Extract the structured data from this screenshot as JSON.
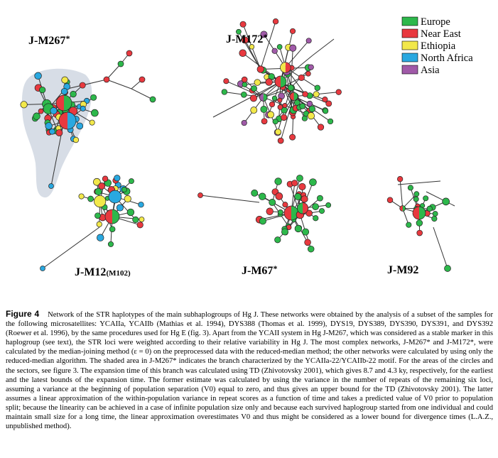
{
  "figure": {
    "networks": [
      {
        "id": "m267",
        "label": "J-M267",
        "suffix": "*"
      },
      {
        "id": "m172",
        "label": "J-M172",
        "suffix": "*"
      },
      {
        "id": "m12",
        "label": "J-M12",
        "suffix": "(M102)"
      },
      {
        "id": "m67",
        "label": "J-M67",
        "suffix": "*"
      },
      {
        "id": "m92",
        "label": "J-M92",
        "suffix": ""
      }
    ],
    "legend": [
      {
        "label": "Europe",
        "color": "#2db84b"
      },
      {
        "label": "Near East",
        "color": "#e8393f"
      },
      {
        "label": "Ethiopia",
        "color": "#f2e84a"
      },
      {
        "label": "North Africa",
        "color": "#29a8e0"
      },
      {
        "label": "Asia",
        "color": "#a05aa8"
      }
    ]
  },
  "caption": {
    "label": "Figure 4",
    "text": "Network of the STR haplotypes of the main subhaplogroups of Hg J. These networks were obtained by the analysis of a subset of the samples for the following microsatellites: YCAIIa, YCAIIb (Mathias et al. 1994), DYS388 (Thomas et al. 1999), DYS19, DYS389, DYS390, DYS391, and DYS392 (Roewer et al. 1996), by the same procedures used for Hg E (fig. 3). Apart from the YCAII system in Hg J-M267, which was considered as a stable marker in this haplogroup (see text), the STR loci were weighted according to their relative variability in Hg J. The most complex networks, J-M267* and J-M172*, were calculated by the median-joining method (ε = 0) on the preprocessed data with the reduced-median method; the other networks were calculated by using only the reduced-median algorithm. The shaded area in J-M267* indicates the branch characterized by the YCAIIa-22/YCAIIb-22 motif. For the areas of the circles and the sectors, see figure 3. The expansion time of this branch was calculated using TD (Zhivotovsky 2001), which gives 8.7 and 4.3 ky, respectively, for the earliest and the latest bounds of the expansion time. The former estimate was calculated by using the variance in the number of repeats of the remaining six loci, assuming a variance at the beginning of population separation (V0) equal to zero, and thus gives an upper bound for the TD (Zhivotovsky 2001). The latter assumes a linear approximation of the within-population variance in repeat scores as a function of time and takes a predicted value of V0 prior to population split; because the linearity can be achieved in a case of infinite population size only and because each survived haplogroup started from one individual and could maintain small size for a long time, the linear approximation overestimates V0 and thus might be considered as a lower bound for divergence times (L.A.Z., unpublished method)."
  }
}
